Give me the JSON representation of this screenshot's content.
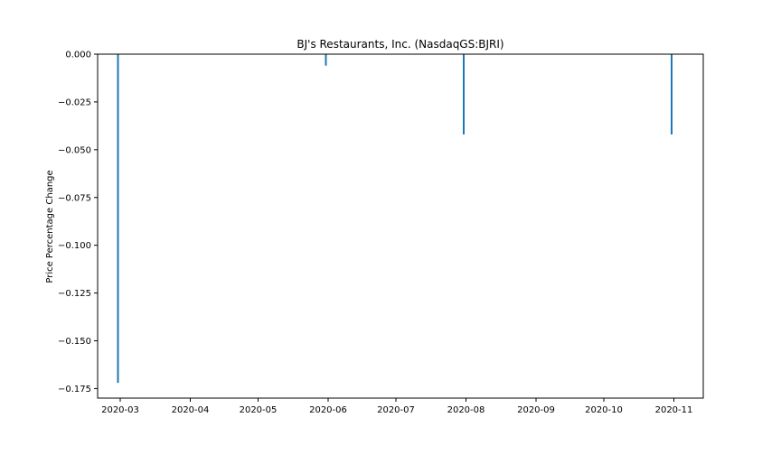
{
  "chart_data": {
    "type": "bar",
    "title": "BJ's Restaurants, Inc. (NasdaqGS:BJRI)",
    "xlabel": "",
    "ylabel": "Price Percentage Change",
    "x_ticks": [
      "2020-03",
      "2020-04",
      "2020-05",
      "2020-06",
      "2020-07",
      "2020-08",
      "2020-09",
      "2020-10",
      "2020-11"
    ],
    "y_ticks": [
      "0.000",
      "−0.025",
      "−0.050",
      "−0.075",
      "−0.100",
      "−0.125",
      "−0.150",
      "−0.175"
    ],
    "ylim": [
      -0.18,
      0.0
    ],
    "xlim": [
      "2020-02-20",
      "2020-11-14"
    ],
    "grid": false,
    "color": "#1f77b4",
    "series": [
      {
        "x": [
          "2020-02-29",
          "2020-05-31",
          "2020-07-31",
          "2020-10-31"
        ],
        "values": [
          -0.172,
          -0.006,
          -0.042,
          -0.042
        ]
      }
    ]
  }
}
